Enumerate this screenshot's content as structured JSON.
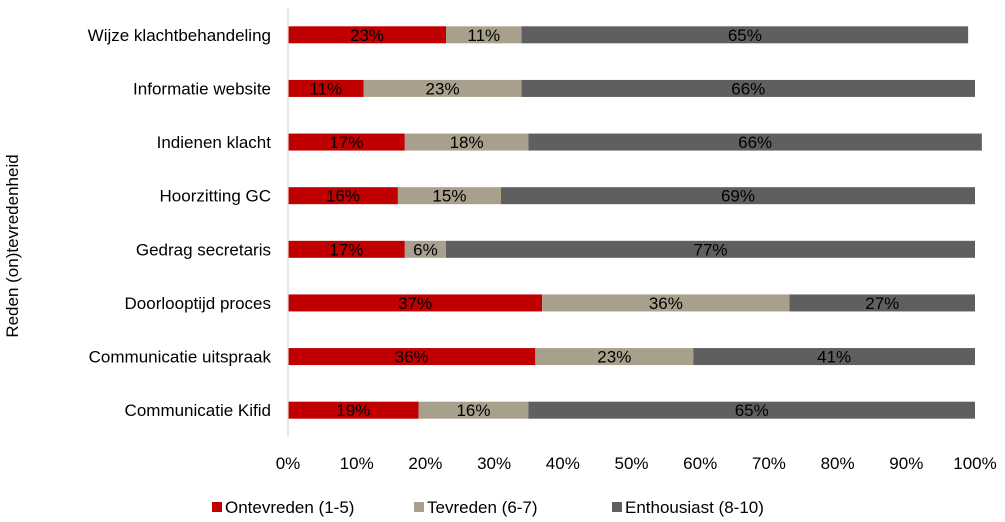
{
  "chart_data": {
    "type": "bar",
    "orientation": "horizontal",
    "stacked": "percent",
    "ylabel": "Reden (on)tevredenheid",
    "xlabel": "",
    "xlim": [
      0,
      100
    ],
    "x_ticks": [
      "0%",
      "10%",
      "20%",
      "30%",
      "40%",
      "50%",
      "60%",
      "70%",
      "80%",
      "90%",
      "100%"
    ],
    "grid": false,
    "legend_position": "bottom",
    "categories": [
      "Wijze klachtbehandeling",
      "Informatie website",
      "Indienen klacht",
      "Hoorzitting GC",
      "Gedrag secretaris",
      "Doorlooptijd proces",
      "Communicatie uitspraak",
      "Communicatie Kifid"
    ],
    "series": [
      {
        "name": "Ontevreden (1-5)",
        "color": "#c00000",
        "values": [
          23,
          11,
          17,
          16,
          17,
          37,
          36,
          19
        ]
      },
      {
        "name": "Tevreden (6-7)",
        "color": "#a8a08c",
        "values": [
          11,
          23,
          18,
          15,
          6,
          36,
          23,
          16
        ]
      },
      {
        "name": "Enthousiast (8-10)",
        "color": "#5f5f5f",
        "values": [
          65,
          66,
          66,
          69,
          77,
          27,
          41,
          65
        ]
      }
    ]
  }
}
